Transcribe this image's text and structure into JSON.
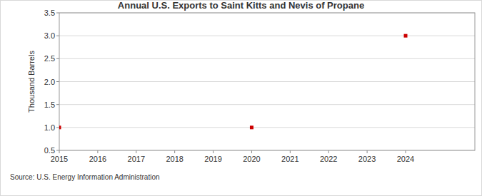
{
  "chart_data": {
    "type": "scatter",
    "title": "Annual U.S. Exports to Saint Kitts and Nevis of Propane",
    "y_label": "Thousand Barrels",
    "source": "Source: U.S. Energy Information Administration",
    "x": [
      2015,
      2020,
      2024
    ],
    "values": [
      1,
      1,
      3
    ],
    "color": "#cc0000",
    "marker": "square",
    "xlim": [
      2015,
      2025.8
    ],
    "xticks": [
      2015,
      2016,
      2017,
      2018,
      2019,
      2020,
      2021,
      2022,
      2023,
      2024
    ],
    "ylim": [
      0.5,
      3.5
    ],
    "yticks": [
      0.5,
      {
        "value": 1,
        "label": "1.0"
      },
      1.5,
      {
        "value": 2,
        "label": "2.0"
      },
      2.5,
      {
        "value": 3,
        "label": "3.0"
      },
      3.5
    ],
    "grid": true
  }
}
